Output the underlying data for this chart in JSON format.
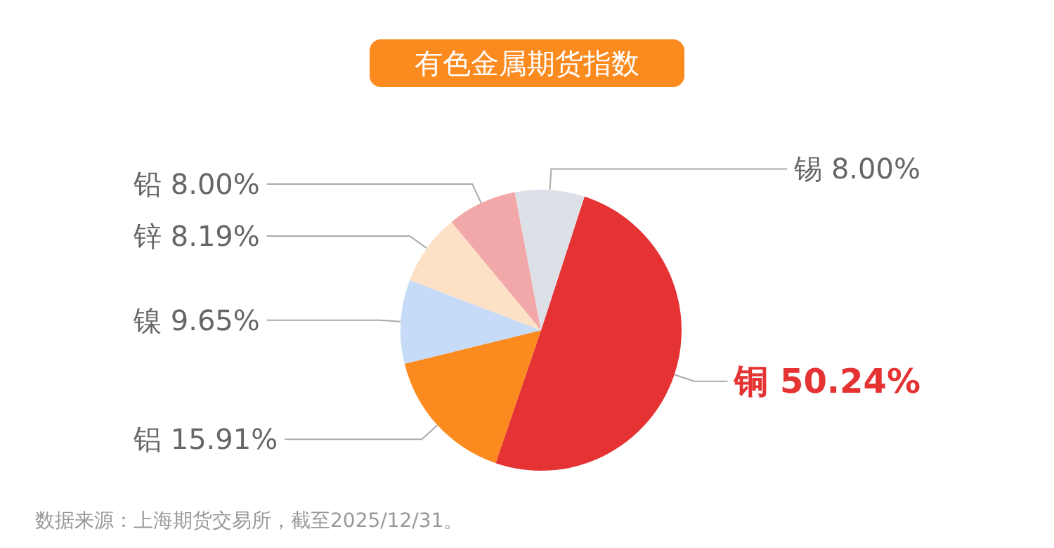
{
  "chart_data": {
    "type": "pie",
    "title": "有色金属期货指数",
    "categories": [
      "铜",
      "铝",
      "镍",
      "锌",
      "铅",
      "锡"
    ],
    "values": [
      50.24,
      15.91,
      9.65,
      8.19,
      8.0,
      8.0
    ],
    "colors": [
      "#e53232",
      "#fb8a1f",
      "#c6dbf8",
      "#fde1c6",
      "#f2a8a8",
      "#dde0e7"
    ],
    "value_labels": [
      "50.24%",
      "15.91%",
      "9.65%",
      "8.19%",
      "8.00%",
      "8.00%"
    ],
    "legend": false,
    "annotations": [
      "数据来源：上海期货交易所，截至2025/12/31。"
    ]
  }
}
